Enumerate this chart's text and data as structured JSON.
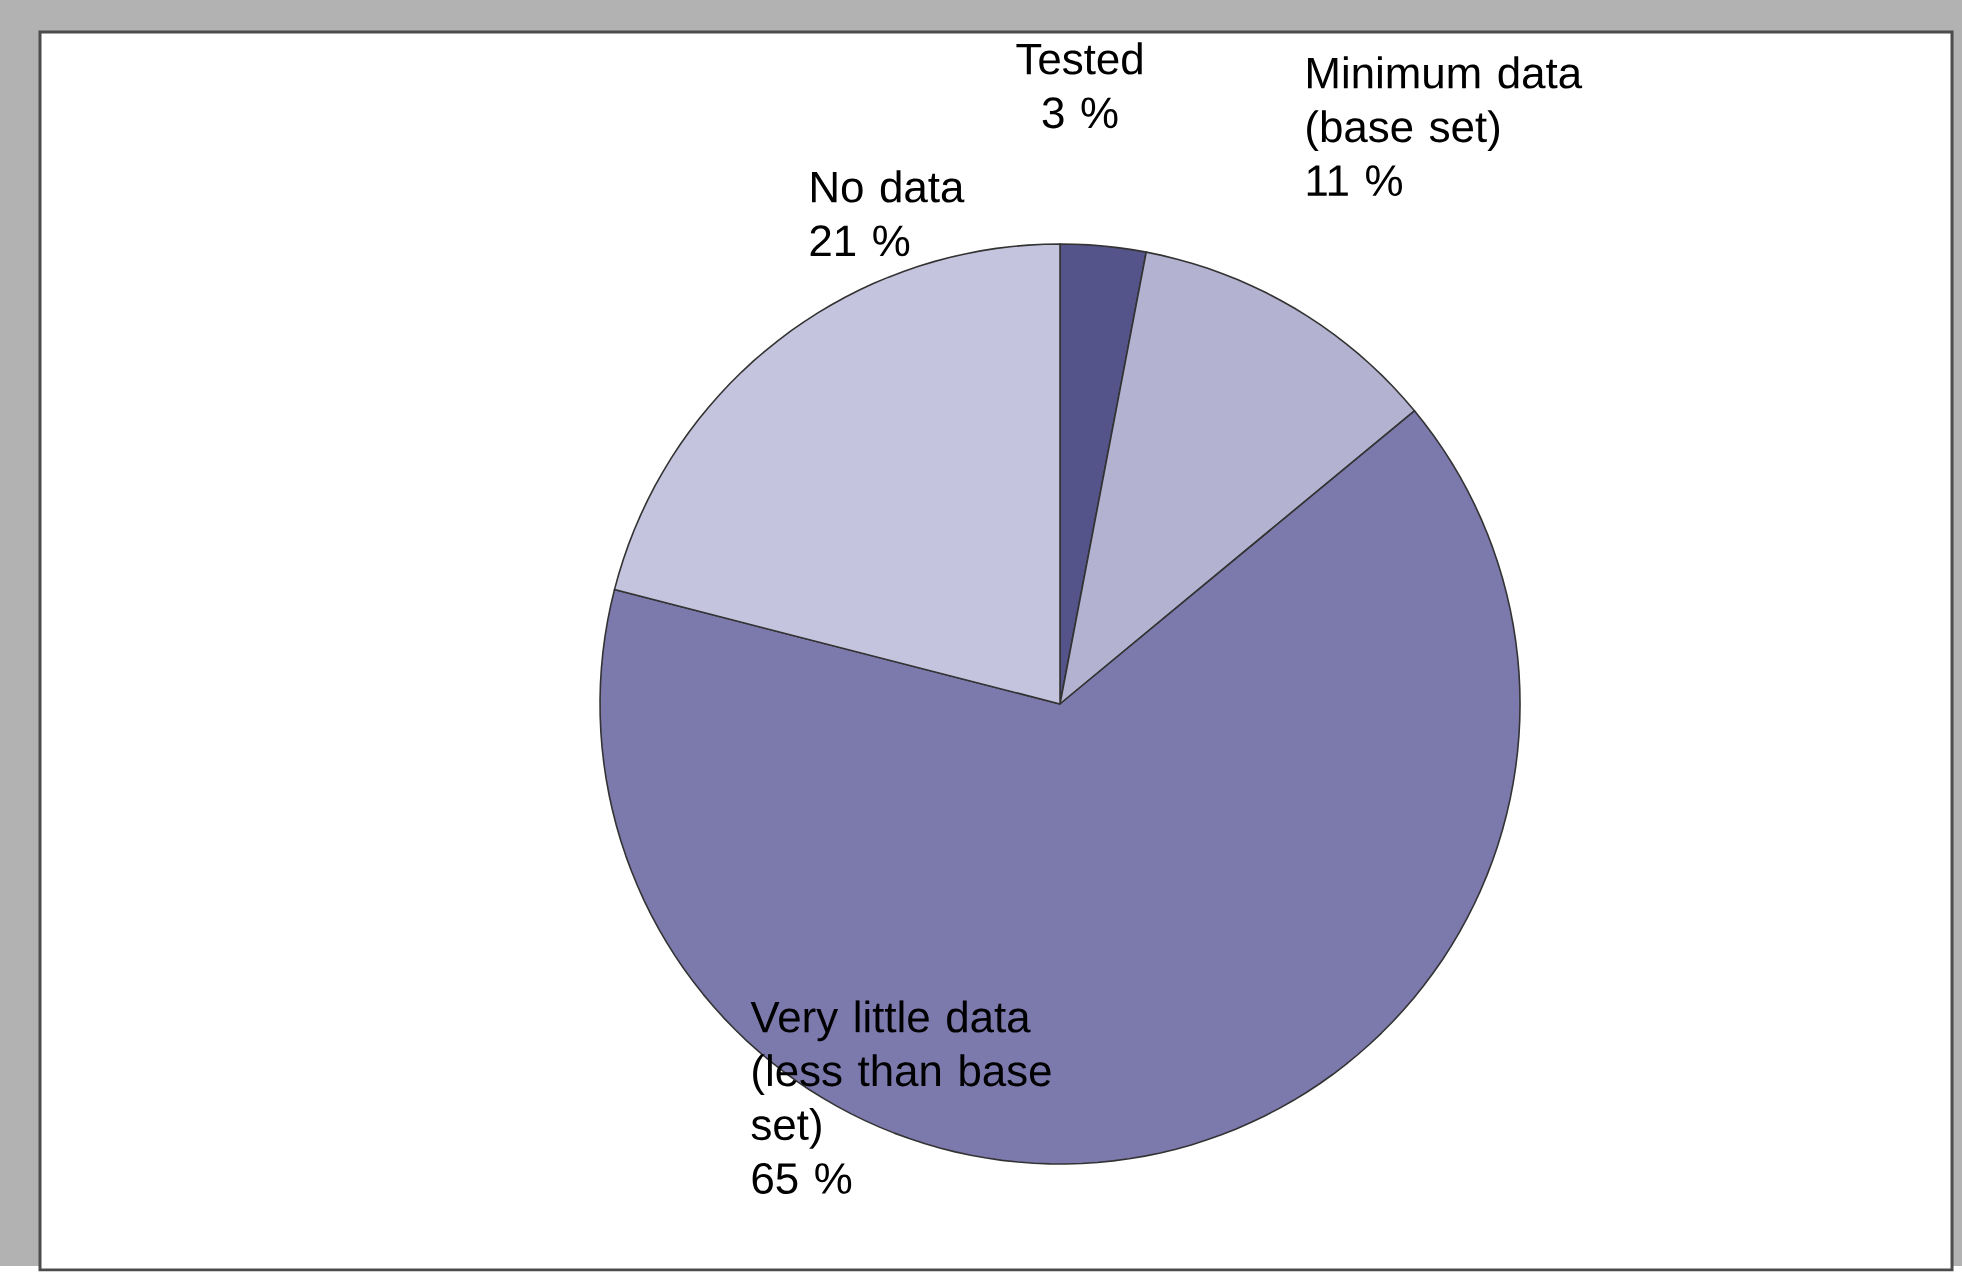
{
  "chart_data": {
    "type": "pie",
    "categories": [
      "Tested",
      "Minimum data (base set)",
      "Very little data (less than base set)",
      "No data"
    ],
    "values": [
      3,
      11,
      65,
      21
    ],
    "value_labels": [
      "3 %",
      "11 %",
      "65 %",
      "21 %"
    ],
    "colors": [
      "#55548a",
      "#b3b2d1",
      "#7c79ad",
      "#c5c4de"
    ]
  }
}
